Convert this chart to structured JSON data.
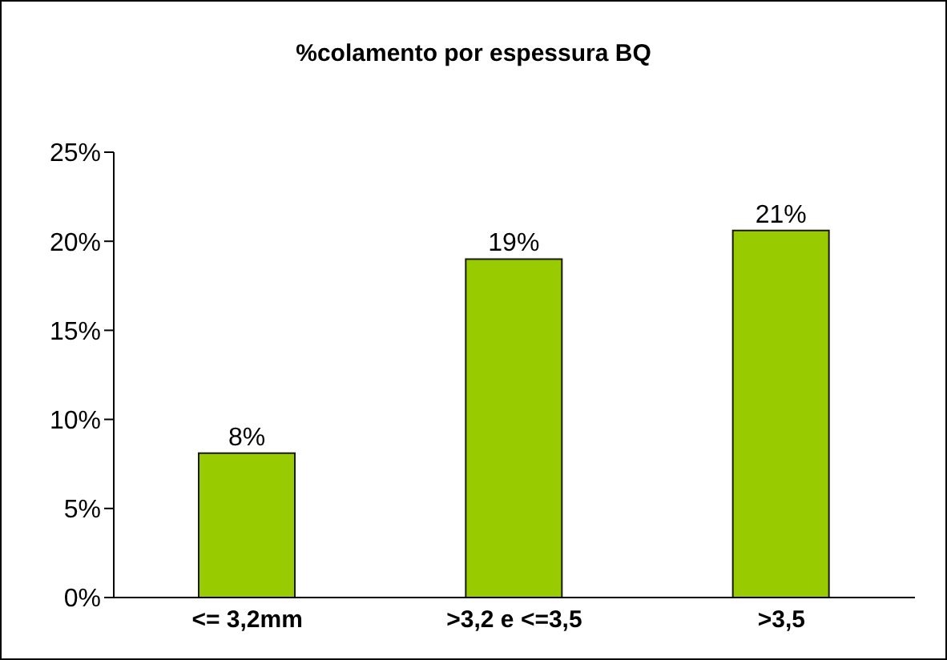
{
  "chart_data": {
    "type": "bar",
    "title": "%colamento por espessura BQ",
    "categories": [
      "<= 3,2mm",
      ">3,2 e <=3,5",
      ">3,5"
    ],
    "values": [
      8.1,
      19,
      20.6
    ],
    "value_labels": [
      "8%",
      "19%",
      "21%"
    ],
    "color": "#99cc00",
    "ylim": [
      0,
      25
    ],
    "yticks": [
      {
        "value": 0,
        "label": "0%"
      },
      {
        "value": 5,
        "label": "5%"
      },
      {
        "value": 10,
        "label": "10%"
      },
      {
        "value": 15,
        "label": "15%"
      },
      {
        "value": 20,
        "label": "20%"
      },
      {
        "value": 25,
        "label": "25%"
      }
    ],
    "grid": false
  }
}
